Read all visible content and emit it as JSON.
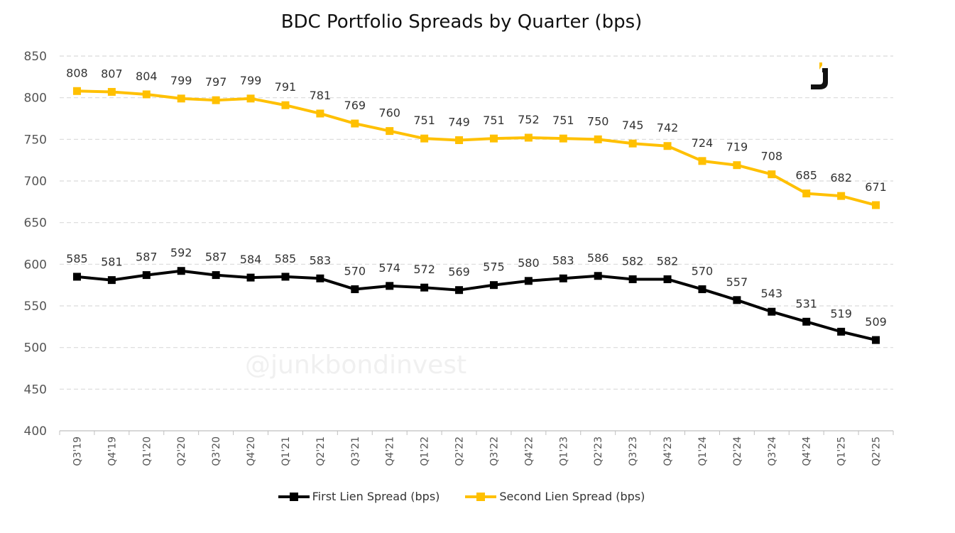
{
  "chart_data": {
    "type": "line",
    "title": "BDC Portfolio Spreads by Quarter (bps)",
    "xlabel": "",
    "ylabel": "",
    "ylim": [
      400,
      850
    ],
    "yticks": [
      400,
      450,
      500,
      550,
      600,
      650,
      700,
      750,
      800,
      850
    ],
    "grid": true,
    "legend_position": "bottom",
    "categories": [
      "Q3'19",
      "Q4'19",
      "Q1'20",
      "Q2'20",
      "Q3'20",
      "Q4'20",
      "Q1'21",
      "Q2'21",
      "Q3'21",
      "Q4'21",
      "Q1'22",
      "Q2'22",
      "Q3'22",
      "Q4'22",
      "Q1'23",
      "Q2'23",
      "Q3'23",
      "Q4'23",
      "Q1'24",
      "Q2'24",
      "Q3'24",
      "Q4'24",
      "Q1'25",
      "Q2'25"
    ],
    "series": [
      {
        "name": "First Lien Spread (bps)",
        "color": "#000000",
        "values": [
          585,
          581,
          587,
          592,
          587,
          584,
          585,
          583,
          570,
          574,
          572,
          569,
          575,
          580,
          583,
          586,
          582,
          582,
          570,
          557,
          543,
          531,
          519,
          509
        ]
      },
      {
        "name": "Second Lien Spread (bps)",
        "color": "#FFC000",
        "values": [
          808,
          807,
          804,
          799,
          797,
          799,
          791,
          781,
          769,
          760,
          751,
          749,
          751,
          752,
          751,
          750,
          745,
          742,
          724,
          719,
          708,
          685,
          682,
          671
        ]
      }
    ],
    "watermark": "@junkbondinvest",
    "logo_letter": "J"
  }
}
